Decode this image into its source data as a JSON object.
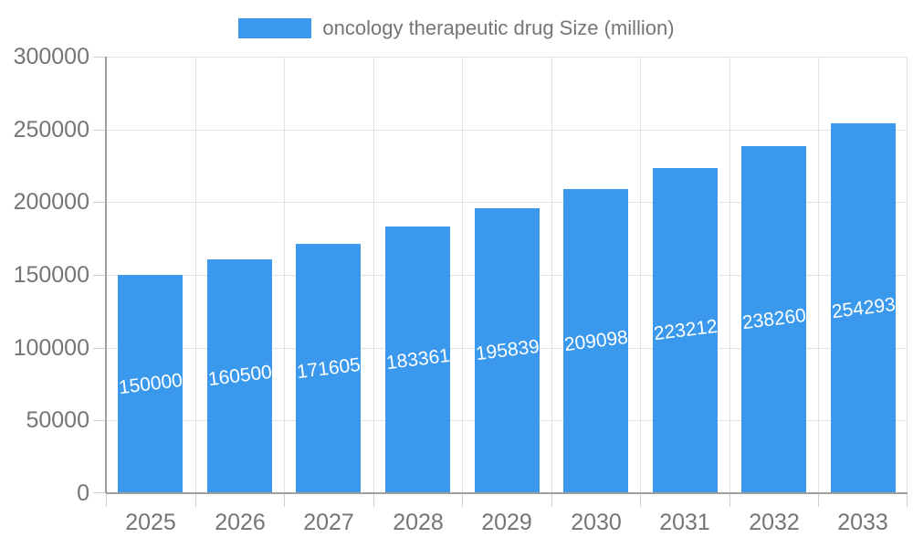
{
  "chart_data": {
    "type": "bar",
    "title": "",
    "legend": "oncology therapeutic drug Size (million)",
    "legend_position": "top-center",
    "categories": [
      "2025",
      "2026",
      "2027",
      "2028",
      "2029",
      "2030",
      "2031",
      "2032",
      "2033"
    ],
    "values": [
      150000,
      160500,
      171605,
      183361,
      195839,
      209098,
      223212,
      238260,
      254293
    ],
    "value_labels": [
      "150000",
      "160500",
      "171605",
      "183361",
      "195839",
      "209098",
      "223212",
      "238260",
      "254293"
    ],
    "xlabel": "",
    "ylabel": "",
    "ylim": [
      0,
      300000
    ],
    "ytick_step": 50000,
    "ytick_labels": [
      "0",
      "50000",
      "100000",
      "150000",
      "200000",
      "250000",
      "300000"
    ],
    "grid": true
  },
  "colors": {
    "bar": "#3a99ec",
    "bar_label": "#ffffff",
    "axis_line": "#9e9e9e",
    "gridline": "#e1e1e1",
    "tick": "#cfcfcf",
    "axis_label": "#757575",
    "legend_text": "#757575",
    "background": "#ffffff"
  }
}
